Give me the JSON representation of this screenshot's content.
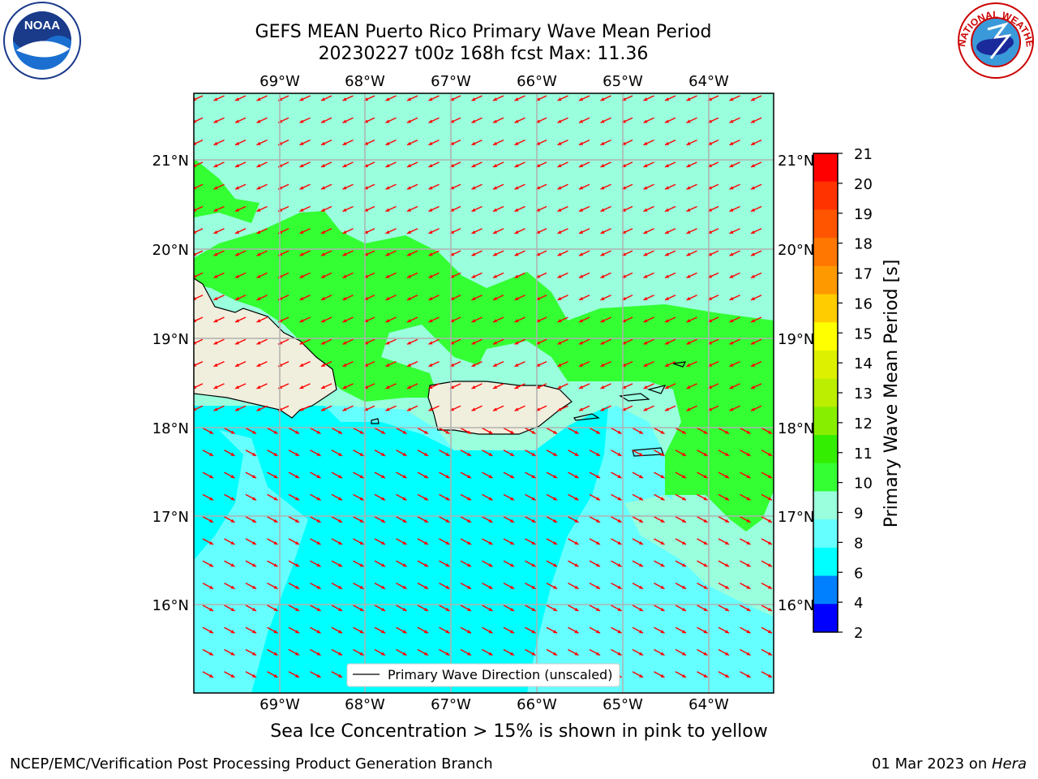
{
  "title": {
    "line1": "GEFS MEAN Puerto Rico Primary Wave Mean Period",
    "line2": "20230227 t00z 168h fcst   Max: 11.36"
  },
  "map": {
    "lon_ticks": [
      "69°W",
      "68°W",
      "67°W",
      "66°W",
      "65°W",
      "64°W"
    ],
    "lat_ticks": [
      "21°N",
      "20°N",
      "19°N",
      "18°N",
      "17°N",
      "16°N"
    ],
    "legend_label": "Primary Wave Direction (unscaled)",
    "colors": {
      "land": "#f0eedc",
      "band_6_8": "#00ffff",
      "band_8_9": "#66ffff",
      "band_9_10": "#99ffdd",
      "band_10_11": "#33ff33",
      "arrow": "#ff0000",
      "grid": "#b0b0b0"
    }
  },
  "colorbar": {
    "label": "Primary Wave Mean Period [s]",
    "ticks": [
      "21",
      "20",
      "19",
      "18",
      "17",
      "16",
      "15",
      "14",
      "13",
      "12",
      "11",
      "10",
      "9",
      "8",
      "6",
      "4",
      "2"
    ],
    "colors": [
      "#ff0000",
      "#ff3300",
      "#ff5500",
      "#ff7700",
      "#ff9900",
      "#ffcc00",
      "#ffff00",
      "#ddf000",
      "#bbee00",
      "#88ee00",
      "#33ee00",
      "#33ff33",
      "#99ffdd",
      "#66ffff",
      "#00ffff",
      "#0080ff",
      "#0000ff"
    ]
  },
  "logos": {
    "noaa_text": "NOAA",
    "nws_text": "NATIONAL WEATHER SERVICE"
  },
  "footer": {
    "note": "Sea Ice Concentration > 15% is shown in pink to yellow",
    "left": "NCEP/EMC/Verification Post Processing Product Generation Branch",
    "right_date": "01 Mar 2023 on ",
    "right_host": "Hera"
  }
}
